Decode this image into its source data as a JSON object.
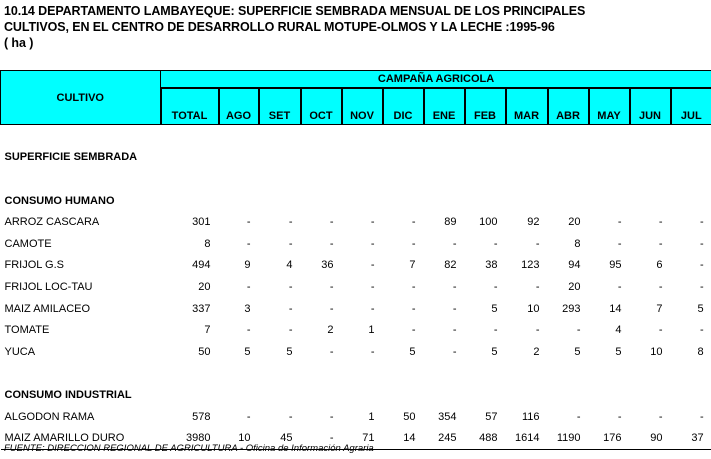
{
  "title_lines": [
    "10.14  DEPARTAMENTO LAMBAYEQUE: SUPERFICIE SEMBRADA MENSUAL DE LOS PRINCIPALES",
    "CULTIVOS, EN EL CENTRO DE DESARROLLO RURAL MOTUPE-OLMOS Y LA LECHE :1995-96",
    "( ha )"
  ],
  "header": {
    "cultivo": "CULTIVO",
    "campana": "CAMPAÑA AGRICOLA",
    "columns": [
      "TOTAL",
      "AGO",
      "SET",
      "OCT",
      "NOV",
      "DIC",
      "ENE",
      "FEB",
      "MAR",
      "ABR",
      "MAY",
      "JUN",
      "JUL"
    ]
  },
  "section_title": "SUPERFICIE SEMBRADA",
  "groups": [
    {
      "name": "CONSUMO HUMANO",
      "rows": [
        {
          "cultivo": "ARROZ CASCARA",
          "values": [
            "301",
            "-",
            "-",
            "-",
            "-",
            "-",
            "89",
            "100",
            "92",
            "20",
            "-",
            "-",
            "-"
          ]
        },
        {
          "cultivo": "CAMOTE",
          "values": [
            "8",
            "-",
            "-",
            "-",
            "-",
            "-",
            "-",
            "-",
            "-",
            "8",
            "-",
            "-",
            "-"
          ]
        },
        {
          "cultivo": "FRIJOL G.S",
          "values": [
            "494",
            "9",
            "4",
            "36",
            "-",
            "7",
            "82",
            "38",
            "123",
            "94",
            "95",
            "6",
            "-"
          ]
        },
        {
          "cultivo": "FRIJOL LOC-TAU",
          "values": [
            "20",
            "-",
            "-",
            "-",
            "-",
            "-",
            "-",
            "-",
            "-",
            "20",
            "-",
            "-",
            "-"
          ]
        },
        {
          "cultivo": "MAIZ AMILACEO",
          "values": [
            "337",
            "3",
            "-",
            "-",
            "-",
            "-",
            "-",
            "5",
            "10",
            "293",
            "14",
            "7",
            "5"
          ]
        },
        {
          "cultivo": "TOMATE",
          "values": [
            "7",
            "-",
            "-",
            "2",
            "1",
            "-",
            "-",
            "-",
            "-",
            "-",
            "4",
            "-",
            "-"
          ]
        },
        {
          "cultivo": "YUCA",
          "values": [
            "50",
            "5",
            "5",
            "-",
            "-",
            "5",
            "-",
            "5",
            "2",
            "5",
            "5",
            "10",
            "8"
          ]
        }
      ]
    },
    {
      "name": "CONSUMO INDUSTRIAL",
      "rows": [
        {
          "cultivo": "ALGODON RAMA",
          "values": [
            "578",
            "-",
            "-",
            "-",
            "1",
            "50",
            "354",
            "57",
            "116",
            "-",
            "-",
            "-",
            "-"
          ]
        },
        {
          "cultivo": "MAIZ AMARILLO DURO",
          "values": [
            "3980",
            "10",
            "45",
            "-",
            "71",
            "14",
            "245",
            "488",
            "1614",
            "1190",
            "176",
            "90",
            "37"
          ]
        }
      ]
    }
  ],
  "footnote": "FUENTE: DIRECCION REGIONAL DE AGRICULTURA - Oficina de Información Agraria",
  "colors": {
    "header_bg": "#00ffff"
  }
}
